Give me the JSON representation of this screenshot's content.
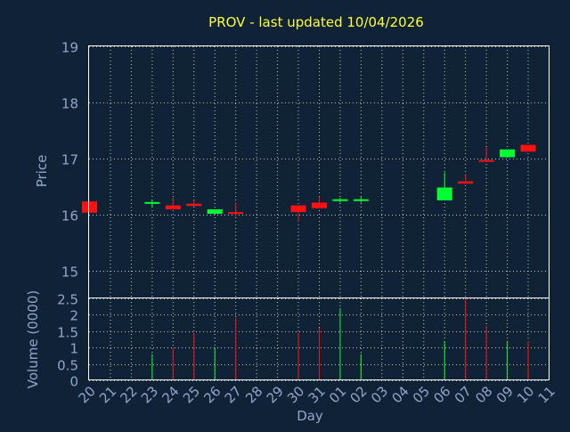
{
  "chart_data": {
    "type": "candlestick",
    "title": "PROV - last updated 10/04/2026",
    "colors": {
      "up": "#00ff33",
      "down": "#ff1111",
      "background": "#0f2236",
      "title": "#ffff33",
      "text": "#8fa8c8",
      "grid": "#ffffff"
    },
    "days": [
      "20",
      "21",
      "22",
      "23",
      "24",
      "25",
      "26",
      "27",
      "28",
      "29",
      "30",
      "31",
      "01",
      "02",
      "03",
      "04",
      "05",
      "06",
      "07",
      "08",
      "09",
      "10",
      "11"
    ],
    "price_panel": {
      "ylabel": "Price",
      "ylim": [
        14.5,
        19
      ],
      "yticks": [
        "15",
        "16",
        "17",
        "18",
        "19"
      ],
      "candles": [
        {
          "day": "20",
          "open": 16.23,
          "close": 16.03,
          "high": 16.23,
          "low": 16.03
        },
        {
          "day": "23",
          "open": 16.2,
          "close": 16.22,
          "high": 16.25,
          "low": 16.12
        },
        {
          "day": "24",
          "open": 16.16,
          "close": 16.09,
          "high": 16.3,
          "low": 16.09
        },
        {
          "day": "25",
          "open": 16.19,
          "close": 16.15,
          "high": 16.25,
          "low": 16.15
        },
        {
          "day": "26",
          "open": 16.01,
          "close": 16.09,
          "high": 16.09,
          "low": 16.01
        },
        {
          "day": "27",
          "open": 16.04,
          "close": 16.02,
          "high": 16.21,
          "low": 15.96
        },
        {
          "day": "30",
          "open": 16.16,
          "close": 16.04,
          "high": 16.16,
          "low": 15.87
        },
        {
          "day": "31",
          "open": 16.21,
          "close": 16.11,
          "high": 16.32,
          "low": 16.11
        },
        {
          "day": "01",
          "open": 16.25,
          "close": 16.27,
          "high": 16.3,
          "low": 16.21
        },
        {
          "day": "02",
          "open": 16.25,
          "close": 16.27,
          "high": 16.31,
          "low": 16.21
        },
        {
          "day": "06",
          "open": 16.25,
          "close": 16.48,
          "high": 16.75,
          "low": 16.25
        },
        {
          "day": "07",
          "open": 16.59,
          "close": 16.55,
          "high": 16.7,
          "low": 16.55
        },
        {
          "day": "08",
          "open": 16.97,
          "close": 16.94,
          "high": 17.2,
          "low": 16.94
        },
        {
          "day": "09",
          "open": 17.02,
          "close": 17.16,
          "high": 17.16,
          "low": 17.02
        },
        {
          "day": "10",
          "open": 17.24,
          "close": 17.12,
          "high": 17.24,
          "low": 17.12
        }
      ]
    },
    "volume_panel": {
      "ylabel": "Volume (0000)",
      "ylim": [
        0,
        2.5
      ],
      "yticks": [
        "0",
        "0.5",
        "1",
        "1.5",
        "2",
        "2.5"
      ],
      "bars": [
        {
          "day": "23",
          "value": 0.8,
          "direction": "up"
        },
        {
          "day": "24",
          "value": 1.0,
          "direction": "down"
        },
        {
          "day": "25",
          "value": 1.45,
          "direction": "down"
        },
        {
          "day": "26",
          "value": 1.0,
          "direction": "up"
        },
        {
          "day": "27",
          "value": 1.9,
          "direction": "down"
        },
        {
          "day": "30",
          "value": 1.45,
          "direction": "down"
        },
        {
          "day": "31",
          "value": 1.6,
          "direction": "down"
        },
        {
          "day": "01",
          "value": 2.2,
          "direction": "up"
        },
        {
          "day": "02",
          "value": 0.8,
          "direction": "up"
        },
        {
          "day": "06",
          "value": 1.2,
          "direction": "up"
        },
        {
          "day": "07",
          "value": 2.5,
          "direction": "down"
        },
        {
          "day": "08",
          "value": 1.65,
          "direction": "down"
        },
        {
          "day": "09",
          "value": 1.2,
          "direction": "up"
        },
        {
          "day": "10",
          "value": 1.2,
          "direction": "down"
        }
      ]
    },
    "xlabel": "Day",
    "grid": true
  }
}
